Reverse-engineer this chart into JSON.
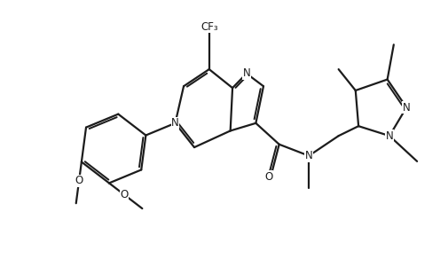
{
  "bg": "#ffffff",
  "lc": "#1c1c1c",
  "lw": 1.6,
  "fs": 8.5,
  "figsize": [
    5.05,
    2.92
  ],
  "dpi": 100,
  "xlim": [
    -1.0,
    9.5
  ],
  "ylim": [
    -2.8,
    3.2
  ]
}
